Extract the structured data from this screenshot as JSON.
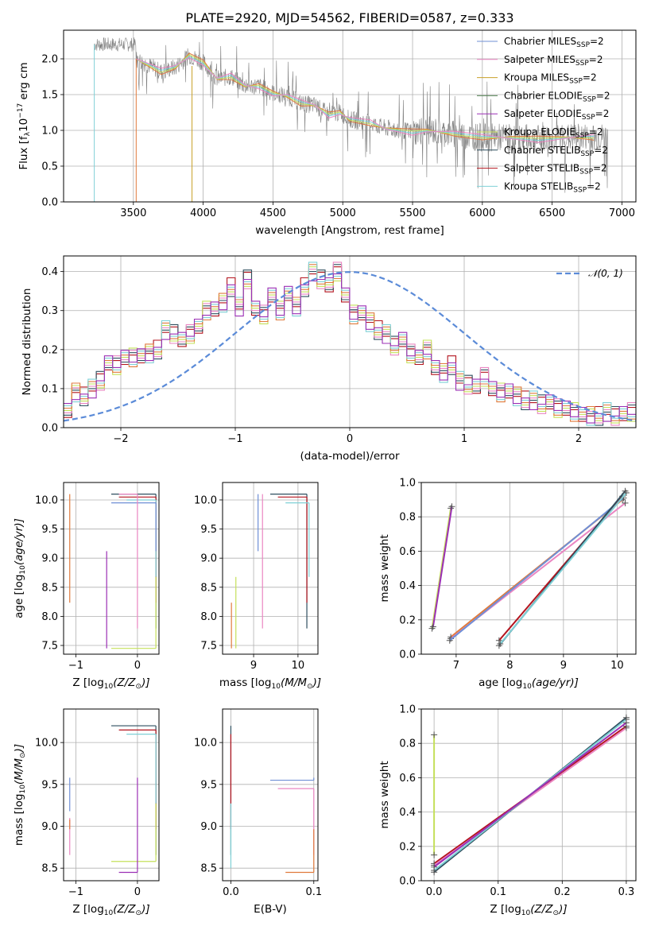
{
  "figure": {
    "title": "PLATE=2920, MJD=54562, FIBERID=0587, z=0.333"
  },
  "colors": {
    "chabrier_miles": "#6f8fd6",
    "salpeter_miles": "#ea86c2",
    "kroupa_miles": "#c8a12a",
    "chabrier_elodie": "#4f7f4f",
    "salpeter_elodie": "#9b2fb5",
    "kroupa_elodie": "#c5e05a",
    "chabrier_stelib": "#2f4f5f",
    "salpeter_stelib": "#b3141e",
    "kroupa_stelib": "#7fd0d6",
    "data": "#808080",
    "model_orange": "#e07a3c",
    "normal": "#5b8bd8"
  },
  "chart_data": [
    {
      "id": "spectrum",
      "type": "line",
      "xlabel": "wavelength [Angstrom, rest frame]",
      "ylabel_main": "Flux [f",
      "ylabel_sub": "λ",
      "ylabel_rest": "10",
      "ylabel_exp": "−17",
      "ylabel_units": " erg cm",
      "xlim": [
        3000,
        7100
      ],
      "ylim": [
        0,
        2.4
      ],
      "xticks": [
        "3500",
        "4000",
        "4500",
        "5000",
        "5500",
        "6000",
        "6500",
        "7000"
      ],
      "yticks": [
        "0.0",
        "0.5",
        "1.0",
        "1.5",
        "2.0"
      ],
      "legend_position": "top-right",
      "legend": [
        {
          "name": "Chabrier MILES",
          "sub": "SSP",
          "suffix": "=2",
          "color_key": "chabrier_miles"
        },
        {
          "name": "Salpeter MILES",
          "sub": "SSP",
          "suffix": "=2",
          "color_key": "salpeter_miles"
        },
        {
          "name": "Kroupa MILES",
          "sub": "SSP",
          "suffix": "=2",
          "color_key": "kroupa_miles"
        },
        {
          "name": "Chabrier ELODIE",
          "sub": "SSP",
          "suffix": "=2",
          "color_key": "chabrier_elodie"
        },
        {
          "name": "Salpeter ELODIE",
          "sub": "SSP",
          "suffix": "=2",
          "color_key": "salpeter_elodie"
        },
        {
          "name": "Kroupa ELODIE",
          "sub": "SSP",
          "suffix": "=2",
          "color_key": "kroupa_elodie"
        },
        {
          "name": "Chabrier STELIB",
          "sub": "SSP",
          "suffix": "=2",
          "color_key": "chabrier_stelib"
        },
        {
          "name": "Salpeter STELIB",
          "sub": "SSP",
          "suffix": "=2",
          "color_key": "salpeter_stelib"
        },
        {
          "name": "Kroupa STELIB",
          "sub": "SSP",
          "suffix": "=2",
          "color_key": "kroupa_stelib"
        }
      ],
      "model_continuum": [
        [
          3520,
          2.0
        ],
        [
          3700,
          1.82
        ],
        [
          3800,
          1.88
        ],
        [
          3900,
          2.05
        ],
        [
          4000,
          1.95
        ],
        [
          4100,
          1.72
        ],
        [
          4200,
          1.75
        ],
        [
          4300,
          1.62
        ],
        [
          4400,
          1.62
        ],
        [
          4500,
          1.52
        ],
        [
          4600,
          1.48
        ],
        [
          4700,
          1.38
        ],
        [
          4800,
          1.35
        ],
        [
          4900,
          1.22
        ],
        [
          4980,
          1.25
        ],
        [
          5050,
          1.15
        ],
        [
          5200,
          1.1
        ],
        [
          5300,
          1.03
        ],
        [
          5500,
          0.98
        ],
        [
          5600,
          1.0
        ],
        [
          5800,
          0.95
        ],
        [
          6000,
          0.9
        ],
        [
          6200,
          0.9
        ],
        [
          6400,
          0.88
        ],
        [
          6600,
          0.9
        ],
        [
          6800,
          0.9
        ]
      ],
      "data_noise_amplitude": 0.25
    },
    {
      "id": "residuals",
      "type": "step",
      "xlabel": "(data-model)/error",
      "ylabel": "Normed distribution",
      "xlim": [
        -2.5,
        2.5
      ],
      "ylim": [
        0,
        0.44
      ],
      "xticks": [
        "−2",
        "−1",
        "0",
        "1",
        "2"
      ],
      "yticks": [
        "0.0",
        "0.1",
        "0.2",
        "0.3",
        "0.4"
      ],
      "legend": "𝒩(0, 1)",
      "bin_width": 0.1,
      "hist_values": [
        0.05,
        0.09,
        0.08,
        0.1,
        0.12,
        0.16,
        0.16,
        0.18,
        0.18,
        0.19,
        0.19,
        0.2,
        0.25,
        0.24,
        0.22,
        0.24,
        0.26,
        0.3,
        0.31,
        0.32,
        0.36,
        0.31,
        0.38,
        0.3,
        0.29,
        0.34,
        0.3,
        0.35,
        0.31,
        0.36,
        0.4,
        0.38,
        0.36,
        0.4,
        0.34,
        0.29,
        0.3,
        0.27,
        0.25,
        0.24,
        0.21,
        0.22,
        0.19,
        0.18,
        0.2,
        0.16,
        0.14,
        0.16,
        0.12,
        0.11,
        0.1,
        0.13,
        0.1,
        0.09,
        0.1,
        0.08,
        0.07,
        0.07,
        0.06,
        0.06,
        0.05,
        0.05,
        0.04,
        0.04,
        0.03,
        0.03,
        0.04,
        0.03,
        0.03,
        0.04
      ]
    },
    {
      "id": "age_vs_Z",
      "type": "scatter",
      "xlabel": "Z [log",
      "xlabel_sub": "10",
      "xlabel_end": "(Z/Z",
      "xlabel_sun": "⊙",
      "xlabel_close": ")]",
      "ylabel": "age  [log",
      "ylabel_sub": "10",
      "ylabel_end": "(age/yr)]",
      "xlim": [
        -1.2,
        0.35
      ],
      "ylim": [
        7.35,
        10.3
      ],
      "xticks": [
        "−1",
        "0"
      ],
      "yticks": [
        "7.5",
        "8.0",
        "8.5",
        "9.0",
        "9.5",
        "10.0"
      ],
      "points": [
        [
          0.3,
          10.1
        ],
        [
          0.3,
          10.05
        ],
        [
          0.3,
          10.0
        ],
        [
          0.3,
          9.95
        ],
        [
          0.0,
          10.1
        ],
        [
          -1.1,
          10.1
        ],
        [
          0.3,
          7.45
        ],
        [
          -0.5,
          7.45
        ]
      ]
    },
    {
      "id": "age_vs_mass",
      "type": "scatter",
      "xlabel": "mass [log",
      "xlabel_sub": "10",
      "xlabel_end": "(M/M",
      "xlabel_sun": "⊙",
      "xlabel_close": ")]",
      "xlim": [
        8.3,
        10.45
      ],
      "ylim": [
        7.35,
        10.3
      ],
      "xticks": [
        "9",
        "10"
      ],
      "yticks": [
        "7.5",
        "8.0",
        "8.5",
        "9.0",
        "9.5",
        "10.0"
      ],
      "points": [
        [
          10.2,
          10.1
        ],
        [
          10.2,
          10.05
        ],
        [
          10.25,
          9.95
        ],
        [
          9.1,
          10.1
        ],
        [
          9.2,
          10.1
        ],
        [
          8.5,
          7.45
        ],
        [
          8.6,
          7.45
        ]
      ]
    },
    {
      "id": "massweight_vs_age",
      "type": "line",
      "xlabel": "age  [log",
      "xlabel_sub": "10",
      "xlabel_end": "(age/yr)]",
      "ylabel": "mass weight",
      "xlim": [
        6.35,
        10.35
      ],
      "ylim": [
        0,
        1.0
      ],
      "xticks": [
        "7",
        "8",
        "9",
        "10"
      ],
      "yticks": [
        "0.0",
        "0.2",
        "0.4",
        "0.6",
        "0.8",
        "1.0"
      ],
      "series": [
        {
          "color_key": "kroupa_elodie",
          "points": [
            [
              6.55,
              0.15
            ],
            [
              6.9,
              0.85
            ]
          ]
        },
        {
          "color_key": "salpeter_elodie",
          "points": [
            [
              6.57,
              0.16
            ],
            [
              6.92,
              0.86
            ]
          ]
        },
        {
          "color_key": "model_orange",
          "points": [
            [
              6.9,
              0.1
            ],
            [
              10.1,
              0.9
            ]
          ]
        },
        {
          "color_key": "salpeter_miles",
          "points": [
            [
              6.9,
              0.09
            ],
            [
              10.15,
              0.88
            ]
          ]
        },
        {
          "color_key": "chabrier_miles",
          "points": [
            [
              6.88,
              0.08
            ],
            [
              10.12,
              0.91
            ]
          ]
        },
        {
          "color_key": "salpeter_stelib",
          "points": [
            [
              7.8,
              0.08
            ],
            [
              10.1,
              0.92
            ]
          ]
        },
        {
          "color_key": "chabrier_stelib",
          "points": [
            [
              7.8,
              0.05
            ],
            [
              10.15,
              0.95
            ]
          ]
        },
        {
          "color_key": "kroupa_stelib",
          "points": [
            [
              7.82,
              0.06
            ],
            [
              10.17,
              0.94
            ]
          ]
        }
      ]
    },
    {
      "id": "mass_vs_Z",
      "type": "scatter",
      "xlabel": "Z [log",
      "xlabel_sub": "10",
      "xlabel_end": "(Z/Z",
      "xlabel_sun": "⊙",
      "xlabel_close": ")]",
      "ylabel": "mass [log",
      "ylabel_sub": "10",
      "ylabel_end": "(M/M",
      "ylabel_sun": "⊙",
      "ylabel_close": ")]",
      "xlim": [
        -1.2,
        0.35
      ],
      "ylim": [
        8.35,
        10.4
      ],
      "xticks": [
        "−1",
        "0"
      ],
      "yticks": [
        "8.5",
        "9.0",
        "9.5",
        "10.0"
      ],
      "points": [
        [
          0.3,
          10.2
        ],
        [
          0.3,
          10.15
        ],
        [
          0.3,
          10.1
        ],
        [
          -1.1,
          9.18
        ],
        [
          -1.1,
          9.1
        ],
        [
          -1.1,
          9.08
        ],
        [
          0.3,
          8.58
        ],
        [
          0.0,
          8.45
        ]
      ]
    },
    {
      "id": "mass_vs_ebv",
      "type": "scatter",
      "xlabel": "E(B-V)",
      "xlim": [
        -0.01,
        0.105
      ],
      "ylim": [
        8.35,
        10.4
      ],
      "xticks": [
        "0.0",
        "0.1"
      ],
      "yticks": [
        "8.5",
        "9.0",
        "9.5",
        "10.0"
      ],
      "points": [
        [
          0.0,
          10.2
        ],
        [
          0.0,
          10.1
        ],
        [
          0.0,
          8.5
        ],
        [
          0.1,
          9.55
        ],
        [
          0.1,
          9.45
        ],
        [
          0.1,
          8.45
        ]
      ]
    },
    {
      "id": "massweight_vs_Z",
      "type": "line",
      "xlabel": "Z [log",
      "xlabel_sub": "10",
      "xlabel_end": "(Z/Z",
      "xlabel_sun": "⊙",
      "xlabel_close": ")]",
      "ylabel": "mass weight",
      "xlim": [
        -0.02,
        0.315
      ],
      "ylim": [
        0,
        1.0
      ],
      "xticks": [
        "0.0",
        "0.1",
        "0.2",
        "0.3"
      ],
      "yticks": [
        "0.0",
        "0.2",
        "0.4",
        "0.6",
        "0.8",
        "1.0"
      ],
      "series": [
        {
          "color_key": "kroupa_elodie",
          "points": [
            [
              0.0,
              0.15
            ],
            [
              0.0,
              0.85
            ]
          ]
        },
        {
          "color_key": "salpeter_stelib",
          "points": [
            [
              0.0,
              0.1
            ],
            [
              0.3,
              0.9
            ]
          ]
        },
        {
          "color_key": "salpeter_miles",
          "points": [
            [
              0.0,
              0.09
            ],
            [
              0.3,
              0.89
            ]
          ]
        },
        {
          "color_key": "chabrier_stelib",
          "points": [
            [
              0.0,
              0.05
            ],
            [
              0.3,
              0.95
            ]
          ]
        },
        {
          "color_key": "kroupa_stelib",
          "points": [
            [
              0.0,
              0.06
            ],
            [
              0.3,
              0.94
            ]
          ]
        },
        {
          "color_key": "salpeter_elodie",
          "points": [
            [
              0.0,
              0.08
            ],
            [
              0.3,
              0.92
            ]
          ]
        }
      ]
    }
  ]
}
